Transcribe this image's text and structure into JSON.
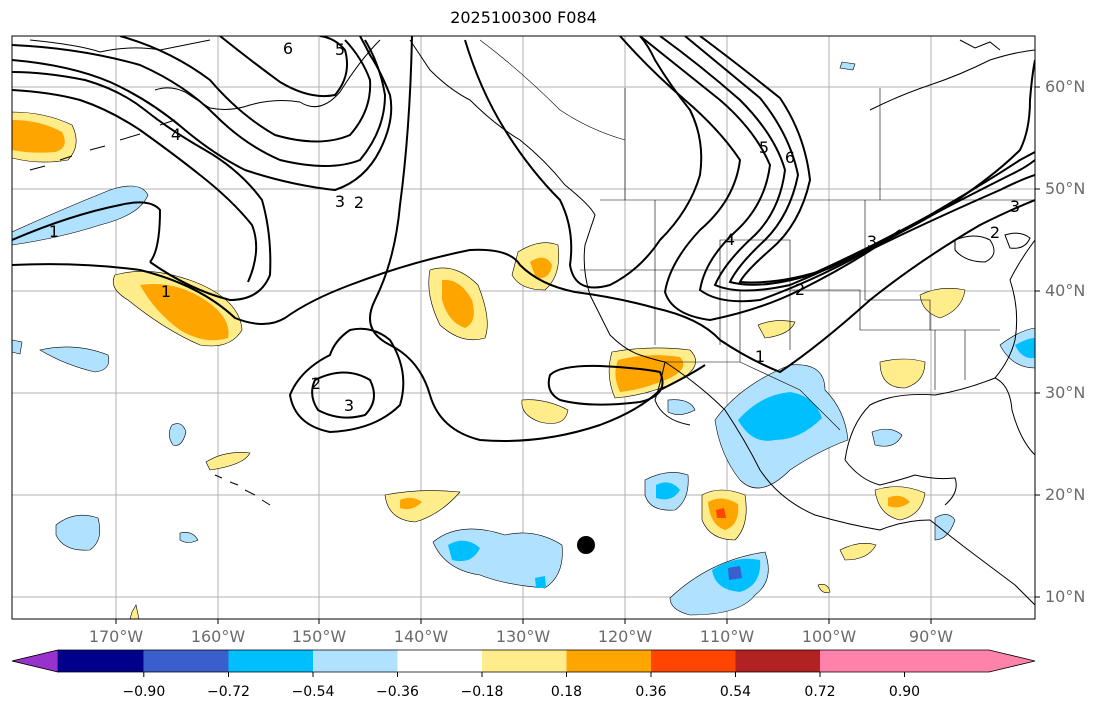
{
  "title": "2025100300 F084",
  "lat_labels": [
    "60°N",
    "50°N",
    "40°N",
    "30°N",
    "20°N",
    "10°N"
  ],
  "lon_labels": [
    "170°W",
    "160°W",
    "150°W",
    "140°W",
    "130°W",
    "120°W",
    "110°W",
    "100°W",
    "90°W"
  ],
  "contour_labels": [
    "6",
    "5",
    "4",
    "3",
    "2",
    "1",
    "1",
    "2",
    "3",
    "4",
    "5",
    "6",
    "3",
    "2",
    "1",
    "2",
    "3"
  ],
  "colorbar": {
    "colors": [
      "#9932cc",
      "#00008b",
      "#3a5fcd",
      "#00bfff",
      "#b0e2ff",
      "#ffffff",
      "#ffec8b",
      "#ffa500",
      "#ff4500",
      "#b22222",
      "#ff82ab"
    ],
    "tick_labels": [
      "−0.90",
      "−0.72",
      "−0.54",
      "−0.36",
      "−0.18",
      "0.18",
      "0.36",
      "0.54",
      "0.72",
      "0.90"
    ]
  },
  "colors": {
    "light_blue": "#b0e2ff",
    "blue": "#00bfff",
    "mid_blue": "#3a5fcd",
    "yellow": "#ffec8b",
    "orange": "#ffa500",
    "red": "#ff4500"
  }
}
